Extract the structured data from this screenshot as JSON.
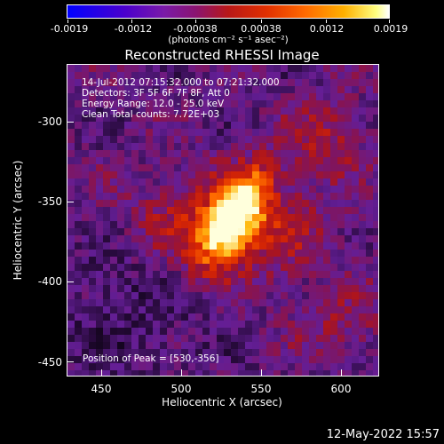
{
  "colorbar": {
    "tick_labels": [
      "-0.0019",
      "-0.0012",
      "-0.00038",
      "0.00038",
      "0.0012",
      "0.0019"
    ],
    "units": "(photons cm⁻² s⁻¹ asec⁻²)"
  },
  "title": "Reconstructed RHESSI Image",
  "annotations": {
    "time_range": "14-Jul-2012 07:15:32.000 to 07:21:32.000",
    "detectors": "Detectors: 3F 5F 6F 7F 8F, Att 0",
    "energy": "Energy Range: 12.0 - 25.0 keV",
    "method_counts": "Clean    Total counts: 7.72E+03",
    "peak": "Position of Peak = [530,-356]"
  },
  "axes": {
    "xlabel": "Heliocentric X (arcsec)",
    "ylabel": "Heliocentric Y (arcsec)",
    "xticks": [
      "450",
      "500",
      "550",
      "600"
    ],
    "yticks": [
      "-300",
      "-350",
      "-400",
      "-450"
    ]
  },
  "footer": {
    "timestamp": "12-May-2022 15:57"
  }
}
